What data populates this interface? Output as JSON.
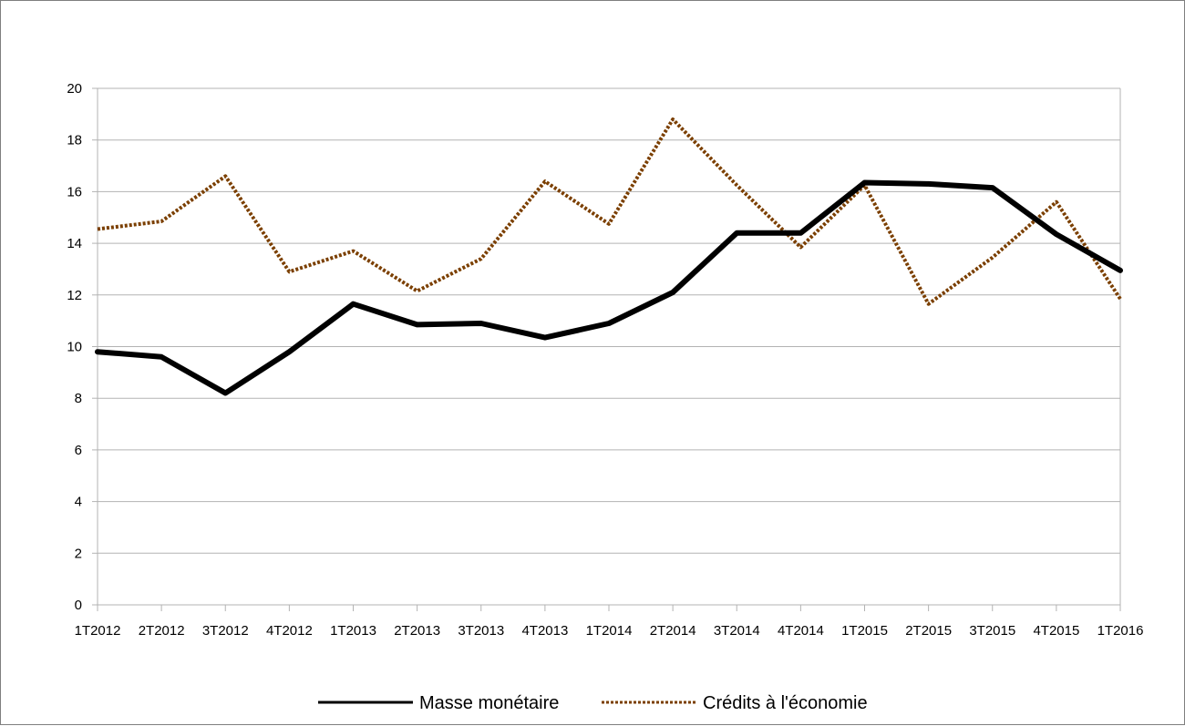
{
  "chart_data": {
    "type": "line",
    "title": "",
    "xlabel": "",
    "ylabel": "",
    "categories": [
      "1T2012",
      "2T2012",
      "3T2012",
      "4T2012",
      "1T2013",
      "2T2013",
      "3T2013",
      "4T2013",
      "1T2014",
      "2T2014",
      "3T2014",
      "4T2014",
      "1T2015",
      "2T2015",
      "3T2015",
      "4T2015",
      "1T2016"
    ],
    "ylim": [
      0,
      20
    ],
    "yticks": [
      0,
      2,
      4,
      6,
      8,
      10,
      12,
      14,
      16,
      18,
      20
    ],
    "grid": true,
    "legend_position": "bottom",
    "series": [
      {
        "name": "Masse monétaire",
        "color": "#000000",
        "style": "solid",
        "values": [
          9.8,
          9.6,
          8.2,
          9.8,
          11.65,
          10.85,
          10.9,
          10.35,
          10.9,
          12.1,
          14.4,
          14.4,
          16.35,
          16.3,
          16.15,
          14.35,
          12.95
        ]
      },
      {
        "name": "Crédits à l'économie",
        "color": "#7b3f00",
        "style": "dotted",
        "values": [
          14.55,
          14.85,
          16.6,
          12.9,
          13.7,
          12.15,
          13.4,
          16.4,
          14.75,
          18.8,
          16.25,
          13.85,
          16.25,
          11.65,
          13.45,
          15.6,
          11.85
        ]
      }
    ]
  }
}
